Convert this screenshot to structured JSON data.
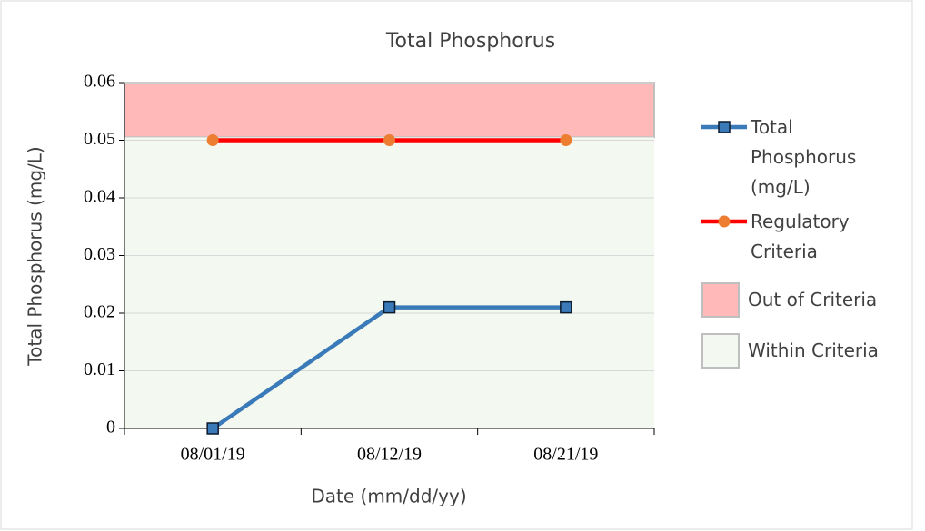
{
  "chart_data": {
    "type": "line",
    "title": "Total Phosphorus",
    "x_label": "Date (mm/dd/yy)",
    "y_label": "Total Phosphorus (mg/L)",
    "categories": [
      "08/01/19",
      "08/12/19",
      "08/21/19"
    ],
    "series": [
      {
        "name": "Total Phosphorus (mg/L)",
        "color": "#3a7ab8",
        "marker": "square",
        "marker_color": "#3a7ab8",
        "values": [
          0,
          0.021,
          0.021
        ]
      },
      {
        "name": "Regulatory Criteria",
        "color": "#ff0000",
        "marker": "circle",
        "marker_color": "#ed7d31",
        "values": [
          0.05,
          0.05,
          0.05
        ]
      }
    ],
    "bands": [
      {
        "name": "Out of Criteria",
        "color": "#ffb9b9",
        "from": 0.0505,
        "to": 0.06
      },
      {
        "name": "Within Criteria",
        "color": "#f3f8f0",
        "from": 0,
        "to": 0.0505
      }
    ],
    "ylim": [
      0,
      0.06
    ],
    "yticks": [
      0,
      0.01,
      0.02,
      0.03,
      0.04,
      0.05,
      0.06
    ],
    "grid": true,
    "legend": "right"
  }
}
